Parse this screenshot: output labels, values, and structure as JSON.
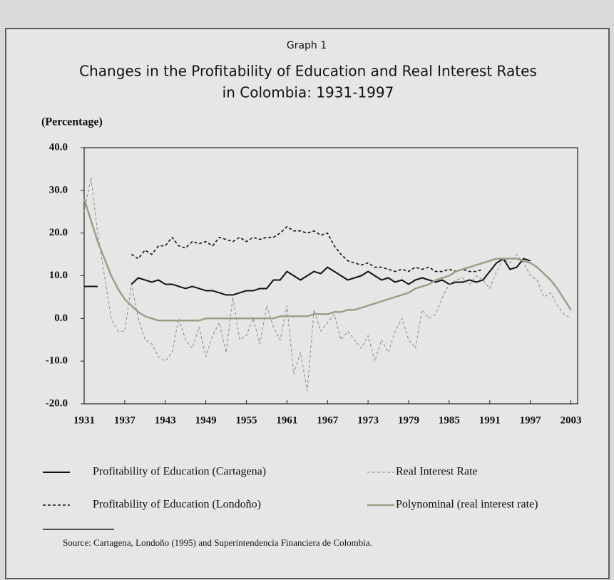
{
  "chart_data": {
    "type": "line",
    "caption": "Graph 1",
    "title": [
      "Changes in the Profitability of Education and Real Interest Rates",
      "in Colombia: 1931-1997"
    ],
    "y_label": "(Percentage)",
    "source": "Source: Cartagena, Londoño (1995) and Superintendencia Financiera de Colombia.",
    "x": [
      1931,
      1932,
      1933,
      1934,
      1935,
      1936,
      1937,
      1938,
      1939,
      1940,
      1941,
      1942,
      1943,
      1944,
      1945,
      1946,
      1947,
      1948,
      1949,
      1950,
      1951,
      1952,
      1953,
      1954,
      1955,
      1956,
      1957,
      1958,
      1959,
      1960,
      1961,
      1962,
      1963,
      1964,
      1965,
      1966,
      1967,
      1968,
      1969,
      1970,
      1971,
      1972,
      1973,
      1974,
      1975,
      1976,
      1977,
      1978,
      1979,
      1980,
      1981,
      1982,
      1983,
      1984,
      1985,
      1986,
      1987,
      1988,
      1989,
      1990,
      1991,
      1992,
      1993,
      1994,
      1995,
      1996,
      1997,
      1998,
      1999,
      2000,
      2001,
      2002,
      2003
    ],
    "xlim": [
      1931,
      2004
    ],
    "xticks": [
      1931,
      1937,
      1943,
      1949,
      1955,
      1961,
      1967,
      1973,
      1979,
      1985,
      1991,
      1997,
      2003
    ],
    "ylim": [
      -20,
      40
    ],
    "yticks": [
      {
        "value": -20,
        "label": "-20.0"
      },
      {
        "value": -10,
        "label": "-10.0"
      },
      {
        "value": 0,
        "label": "0.0"
      },
      {
        "value": 10,
        "label": "10.0"
      },
      {
        "value": 20,
        "label": "20.0"
      },
      {
        "value": 30,
        "label": "30.0"
      },
      {
        "value": 40,
        "label": "40.0"
      }
    ],
    "series": [
      {
        "name": "Profitability of Education (Cartagena)",
        "color": "#111111",
        "style": "solid",
        "width": 2,
        "values": [
          7.5,
          7.5,
          7.5,
          null,
          null,
          null,
          null,
          8,
          9.5,
          9,
          8.5,
          9,
          8,
          8,
          7.5,
          7,
          7.5,
          7,
          6.5,
          6.5,
          6,
          5.5,
          5.5,
          6,
          6.5,
          6.5,
          7,
          7,
          9,
          9,
          11,
          10,
          9,
          10,
          11,
          10.5,
          12,
          11,
          10,
          9,
          9.5,
          10,
          11,
          10,
          9,
          9.5,
          8.5,
          9,
          8,
          9,
          9.5,
          9,
          8.5,
          9,
          8,
          8.5,
          8.5,
          9,
          8.5,
          9,
          11,
          13,
          14,
          11.5,
          12,
          14,
          13.5,
          null,
          null,
          null,
          null,
          null,
          null
        ]
      },
      {
        "name": "Profitability of Education (Londoño)",
        "color": "#111111",
        "style": "dashed",
        "width": 1.6,
        "values": [
          null,
          null,
          null,
          null,
          null,
          null,
          null,
          15,
          14,
          16,
          15,
          17,
          17,
          19,
          17,
          16.5,
          18,
          17.5,
          18,
          17,
          19,
          18.5,
          18,
          19,
          18,
          19,
          18.5,
          19,
          19,
          20,
          21.5,
          20.5,
          20.5,
          20,
          20.5,
          19.5,
          20,
          17,
          15,
          13.5,
          13,
          12.5,
          13,
          12,
          12,
          11.5,
          11,
          11.5,
          11,
          12,
          11.5,
          12,
          11,
          11,
          11.5,
          11,
          11.5,
          11,
          11,
          11.5,
          null,
          null,
          null,
          null,
          null,
          null,
          null,
          null,
          null,
          null,
          null,
          null,
          null
        ]
      },
      {
        "name": "Real Interest Rate",
        "color": "#8a8a8a",
        "style": "dashed",
        "width": 1,
        "values": [
          25,
          33,
          20,
          10,
          0,
          -3,
          -3,
          8,
          0,
          -5,
          -6,
          -9,
          -10,
          -8,
          0,
          -5,
          -7,
          -2,
          -9,
          -4,
          -1,
          -8,
          5,
          -5,
          -4,
          0,
          -6,
          3,
          -2,
          -5,
          3,
          -13,
          -8,
          -17,
          2,
          -3,
          -1,
          1,
          -5,
          -3,
          -5,
          -7,
          -4,
          -10,
          -5,
          -8,
          -3,
          0,
          -5,
          -7,
          2,
          0,
          1,
          5,
          8,
          9,
          9.5,
          8,
          10,
          9,
          7,
          11,
          14,
          13,
          15,
          13,
          10,
          9,
          5,
          6,
          3,
          1,
          0
        ]
      },
      {
        "name": "Polynominal (real interest rate)",
        "color": "#9b9c84",
        "style": "solid",
        "width": 2.4,
        "values": [
          28,
          23,
          18,
          14,
          10,
          7,
          4.5,
          3,
          1.5,
          0.5,
          0,
          -0.5,
          -0.5,
          -0.5,
          -0.5,
          -0.5,
          -0.5,
          -0.5,
          0,
          0,
          0,
          0,
          0,
          0,
          0,
          0,
          0,
          0,
          0,
          0.5,
          0.5,
          0.5,
          0.5,
          0.5,
          1,
          1,
          1,
          1.5,
          1.5,
          2,
          2,
          2.5,
          3,
          3.5,
          4,
          4.5,
          5,
          5.5,
          6,
          7,
          7.5,
          8,
          9,
          9.5,
          10,
          11,
          11.5,
          12,
          12.5,
          13,
          13.5,
          14,
          14,
          14,
          14,
          13.5,
          13,
          12,
          10.5,
          9,
          7,
          4.5,
          2
        ]
      }
    ]
  }
}
